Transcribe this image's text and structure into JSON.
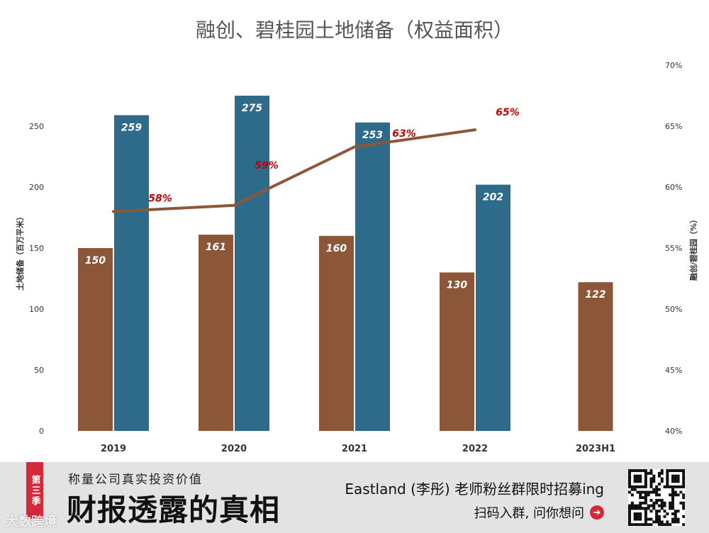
{
  "chart_data": {
    "type": "bar",
    "title": "融创、碧桂园土地储备（权益面积）",
    "categories": [
      "2019",
      "2020",
      "2021",
      "2022",
      "2023H1"
    ],
    "series": [
      {
        "name": "融创",
        "kind": "bar",
        "color": "#8b5738",
        "values": [
          150,
          161,
          160,
          130,
          122
        ]
      },
      {
        "name": "碧桂园",
        "kind": "bar",
        "color": "#2e6b8a",
        "values": [
          259,
          275,
          253,
          202,
          null
        ]
      },
      {
        "name": "融创/碧桂园",
        "kind": "line",
        "axis": "right",
        "color": "#8b5738",
        "values": [
          58,
          58.5,
          63.3,
          64.7,
          null
        ],
        "labels": [
          "58%",
          "59%",
          "63%",
          "65%",
          ""
        ]
      }
    ],
    "ylabel": "土地储备（百万平米）",
    "ylim": [
      0,
      300
    ],
    "yticks": [
      0,
      50,
      100,
      150,
      200,
      250
    ],
    "y2label": "融创/碧桂园（%）",
    "y2lim": [
      40,
      70
    ],
    "y2ticks": [
      "40%",
      "45%",
      "50%",
      "55%",
      "60%",
      "65%",
      "70%"
    ]
  },
  "banner": {
    "season": "第三季",
    "subtitle": "称量公司真实投资价值",
    "title": "财报透露的真相",
    "promo_line1": "Eastland (李彤) 老师粉丝群限时招募ing",
    "promo_line2": "扫码入群, 问你想问",
    "arrow": "➔",
    "watermark": "大数跨境"
  }
}
